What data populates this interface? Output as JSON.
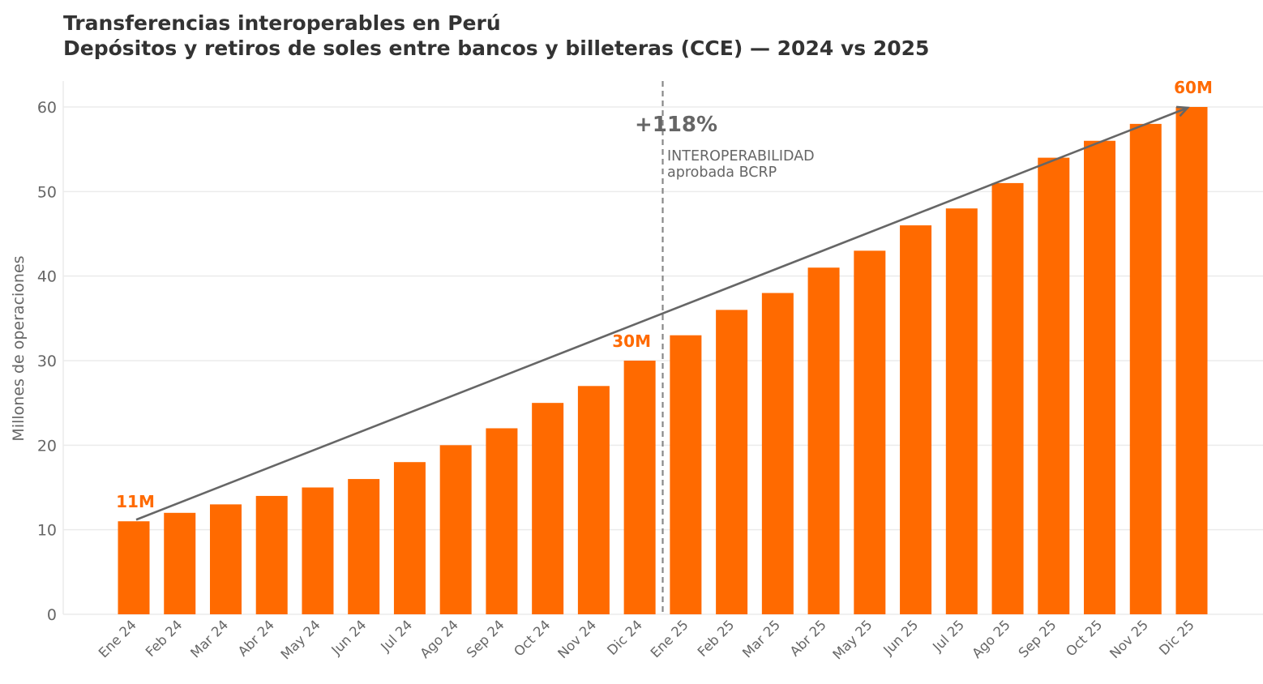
{
  "chart_data": {
    "type": "bar",
    "title": "Transferencias interoperables en Perú",
    "subtitle": "Depósitos y retiros de soles entre bancos y billeteras (CCE) — 2024 vs 2025",
    "xlabel": "",
    "ylabel": "Millones de operaciones",
    "ylim": [
      0,
      63
    ],
    "yticks": [
      0,
      10,
      20,
      30,
      40,
      50,
      60
    ],
    "grid": true,
    "categories": [
      "Ene 24",
      "Feb 24",
      "Mar 24",
      "Abr 24",
      "May 24",
      "Jun 24",
      "Jul 24",
      "Ago 24",
      "Sep 24",
      "Oct 24",
      "Nov 24",
      "Dic 24",
      "Ene 25",
      "Feb 25",
      "Mar 25",
      "Abr 25",
      "May 25",
      "Jun 25",
      "Jul 25",
      "Ago 25",
      "Sep 25",
      "Oct 25",
      "Nov 25",
      "Dic 25"
    ],
    "values": [
      11,
      12,
      13,
      14,
      15,
      16,
      18,
      20,
      22,
      25,
      27,
      30,
      33,
      36,
      38,
      41,
      43,
      46,
      48,
      51,
      54,
      56,
      58,
      60
    ],
    "bar_color": "#ff6a00",
    "data_labels": [
      {
        "category": "Ene 24",
        "text": "11M"
      },
      {
        "category": "Dic 24",
        "text": "30M"
      },
      {
        "category": "Dic 25",
        "text": "60M"
      }
    ],
    "trend_arrow": {
      "from": {
        "category": "Ene 24",
        "value": 11
      },
      "to": {
        "category": "Dic 25",
        "value": 60
      },
      "color": "#666666"
    },
    "annotations": {
      "growth": "+118%",
      "event_line_between": [
        "Dic 24",
        "Ene 25"
      ],
      "event_text_1": "INTEROPERABILIDAD",
      "event_text_2": "aprobada BCRP"
    }
  }
}
